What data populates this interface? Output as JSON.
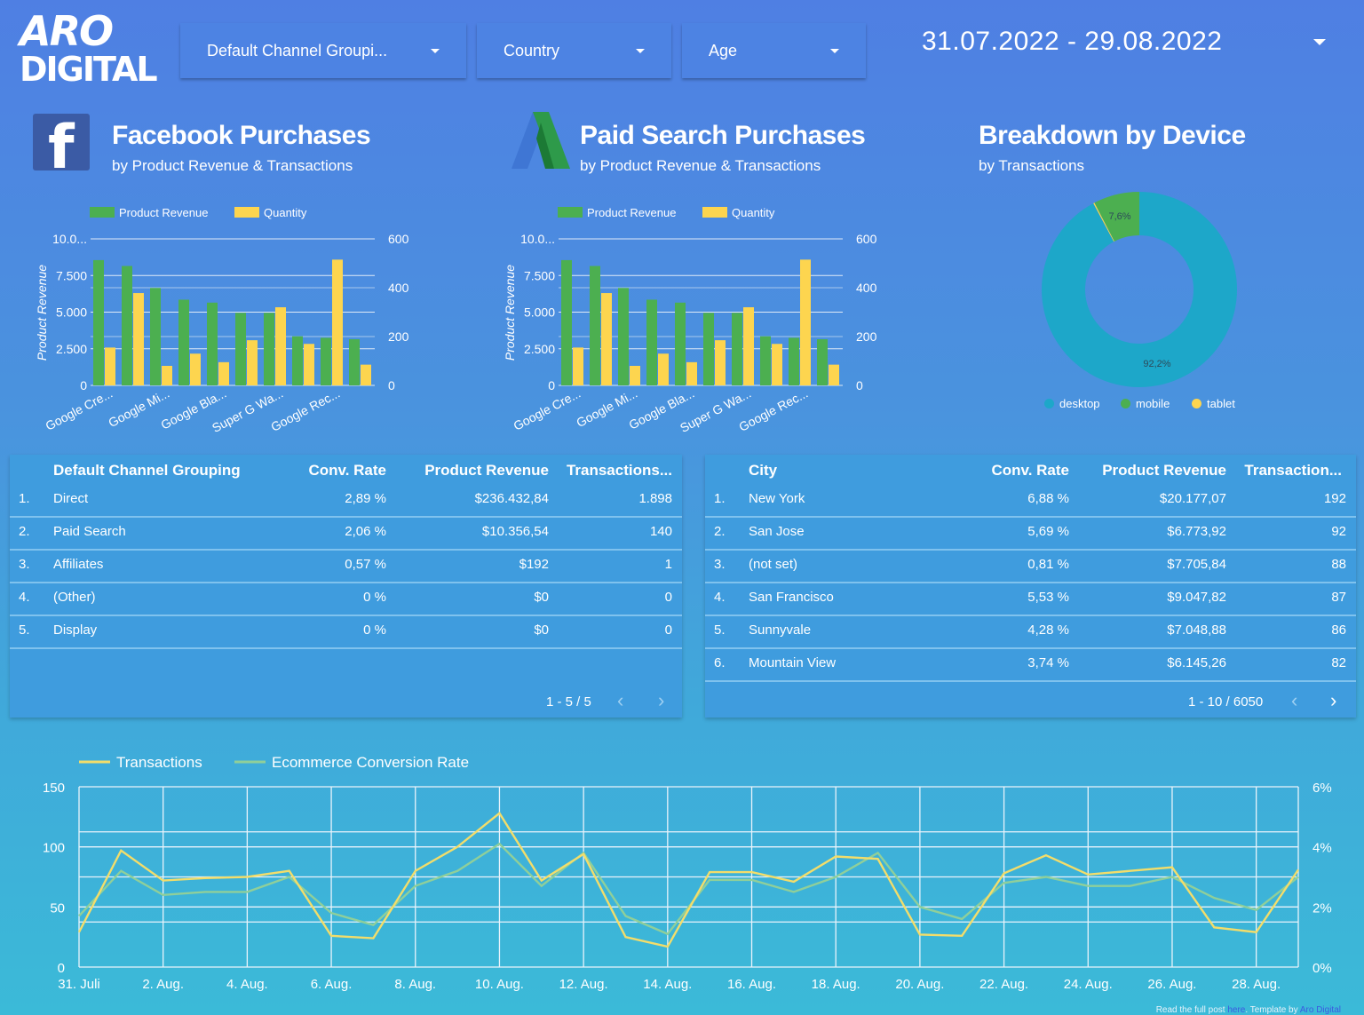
{
  "brand": {
    "line1": "ARO",
    "line2": "DIGITAL"
  },
  "filters": [
    {
      "label": "Default Channel Groupi..."
    },
    {
      "label": "Country"
    },
    {
      "label": "Age"
    }
  ],
  "date_range": "31.07.2022 - 29.08.2022",
  "sections": {
    "facebook": {
      "title": "Facebook Purchases",
      "subtitle": "by Product Revenue & Transactions",
      "icon": "facebook-icon"
    },
    "paid_search": {
      "title": "Paid Search Purchases",
      "subtitle": "by Product Revenue & Transactions",
      "icon": "google-ads-icon"
    },
    "device": {
      "title": "Breakdown by Device",
      "subtitle": "by Transactions"
    }
  },
  "colors": {
    "green": "#4caf50",
    "yellow": "#fdd54f",
    "teal": "#1da7c9",
    "line_yellow": "#f3dd6a",
    "line_green": "#8fcf9a"
  },
  "chart_data": [
    {
      "type": "bar",
      "id": "facebook",
      "legend": [
        "Product Revenue",
        "Quantity"
      ],
      "categories": [
        "Google Cre...",
        "Google Mi...",
        "Google Bla...",
        "Super G Wa...",
        "Google Rec...",
        "",
        "",
        "",
        "",
        ""
      ],
      "tick_labels": [
        "Google Cre...",
        "Google Mi...",
        "Google Bla...",
        "Super G Wa...",
        "Google Rec..."
      ],
      "ylabel": "Product Revenue",
      "y_ticks": [
        "10.0...",
        "7.500",
        "5.000",
        "2.500",
        "0"
      ],
      "y2_ticks": [
        "600",
        "400",
        "200",
        "0"
      ],
      "ylim": [
        0,
        10000
      ],
      "y2lim": [
        0,
        600
      ],
      "series": [
        {
          "name": "Product Revenue",
          "axis": "left",
          "values": [
            8550,
            8150,
            6650,
            5850,
            5650,
            4950,
            4950,
            3350,
            3250,
            3150
          ]
        },
        {
          "name": "Quantity",
          "axis": "right",
          "values": [
            155,
            378,
            80,
            130,
            95,
            185,
            320,
            170,
            515,
            85
          ]
        }
      ]
    },
    {
      "type": "bar",
      "id": "paid_search",
      "legend": [
        "Product Revenue",
        "Quantity"
      ],
      "categories": [
        "Google Cre...",
        "Google Mi...",
        "Google Bla...",
        "Super G Wa...",
        "Google Rec...",
        "",
        "",
        "",
        "",
        ""
      ],
      "tick_labels": [
        "Google Cre...",
        "Google Mi...",
        "Google Bla...",
        "Super G Wa...",
        "Google Rec..."
      ],
      "ylabel": "Product Revenue",
      "y_ticks": [
        "10.0...",
        "7.500",
        "5.000",
        "2.500",
        "0"
      ],
      "y2_ticks": [
        "600",
        "400",
        "200",
        "0"
      ],
      "ylim": [
        0,
        10000
      ],
      "y2lim": [
        0,
        600
      ],
      "series": [
        {
          "name": "Product Revenue",
          "axis": "left",
          "values": [
            8550,
            8150,
            6650,
            5850,
            5650,
            4950,
            4950,
            3350,
            3250,
            3150
          ]
        },
        {
          "name": "Quantity",
          "axis": "right",
          "values": [
            155,
            378,
            80,
            130,
            95,
            185,
            320,
            170,
            515,
            85
          ]
        }
      ]
    },
    {
      "type": "pie",
      "id": "device",
      "labels": [
        "desktop",
        "mobile",
        "tablet"
      ],
      "values": [
        92.2,
        7.6,
        0.2
      ],
      "value_labels": [
        "92,2%",
        "7,6%",
        ""
      ],
      "colors": [
        "#1da7c9",
        "#4caf50",
        "#fdd54f"
      ],
      "donut": true
    },
    {
      "type": "line",
      "id": "trend",
      "legend": [
        "Transactions",
        "Ecommerce Conversion Rate"
      ],
      "x_labels": [
        "31. Juli",
        "2. Aug.",
        "4. Aug.",
        "6. Aug.",
        "8. Aug.",
        "10. Aug.",
        "12. Aug.",
        "14. Aug.",
        "16. Aug.",
        "18. Aug.",
        "20. Aug.",
        "22. Aug.",
        "24. Aug.",
        "26. Aug.",
        "28. Aug."
      ],
      "y_ticks": [
        "150",
        "100",
        "50",
        "0"
      ],
      "y2_ticks": [
        "6%",
        "4%",
        "2%",
        "0%"
      ],
      "ylim": [
        0,
        150
      ],
      "y2lim": [
        0,
        6
      ],
      "series": [
        {
          "name": "Transactions",
          "axis": "left",
          "values": [
            29,
            97,
            72,
            74,
            75,
            80,
            26,
            24,
            80,
            100,
            128,
            72,
            94,
            25,
            17,
            79,
            79,
            71,
            92,
            90,
            27,
            26,
            78,
            93,
            77,
            80,
            83,
            33,
            29,
            81
          ]
        },
        {
          "name": "Ecommerce Conversion Rate",
          "axis": "right",
          "values": [
            1.7,
            3.2,
            2.4,
            2.5,
            2.5,
            3.0,
            1.8,
            1.4,
            2.7,
            3.2,
            4.1,
            2.7,
            3.8,
            1.7,
            1.1,
            2.9,
            2.9,
            2.5,
            3.0,
            3.8,
            2.0,
            1.6,
            2.8,
            3.0,
            2.7,
            2.7,
            3.0,
            2.3,
            1.9,
            3.0
          ]
        }
      ]
    }
  ],
  "channel_table": {
    "headers": [
      "Default Channel Grouping",
      "Conv. Rate",
      "Product Revenue",
      "Transactions..."
    ],
    "rows": [
      {
        "idx": "1.",
        "name": "Direct",
        "conv": "2,89 %",
        "rev": "$236.432,84",
        "tx": "1.898"
      },
      {
        "idx": "2.",
        "name": "Paid Search",
        "conv": "2,06 %",
        "rev": "$10.356,54",
        "tx": "140"
      },
      {
        "idx": "3.",
        "name": "Affiliates",
        "conv": "0,57 %",
        "rev": "$192",
        "tx": "1"
      },
      {
        "idx": "4.",
        "name": "(Other)",
        "conv": "0 %",
        "rev": "$0",
        "tx": "0"
      },
      {
        "idx": "5.",
        "name": "Display",
        "conv": "0 %",
        "rev": "$0",
        "tx": "0"
      }
    ],
    "pager": "1 - 5 / 5"
  },
  "city_table": {
    "headers": [
      "City",
      "Conv. Rate",
      "Product Revenue",
      "Transaction..."
    ],
    "rows": [
      {
        "idx": "1.",
        "name": "New York",
        "conv": "6,88 %",
        "rev": "$20.177,07",
        "tx": "192"
      },
      {
        "idx": "2.",
        "name": "San Jose",
        "conv": "5,69 %",
        "rev": "$6.773,92",
        "tx": "92"
      },
      {
        "idx": "3.",
        "name": "(not set)",
        "conv": "0,81 %",
        "rev": "$7.705,84",
        "tx": "88"
      },
      {
        "idx": "4.",
        "name": "San Francisco",
        "conv": "5,53 %",
        "rev": "$9.047,82",
        "tx": "87"
      },
      {
        "idx": "5.",
        "name": "Sunnyvale",
        "conv": "4,28 %",
        "rev": "$7.048,88",
        "tx": "86"
      },
      {
        "idx": "6.",
        "name": "Mountain View",
        "conv": "3,74 %",
        "rev": "$6.145,26",
        "tx": "82"
      }
    ],
    "pager": "1 - 10 / 6050"
  },
  "footer": {
    "text1": "Read the full post ",
    "link1": "here",
    "text2": ". Template by ",
    "link2": "Aro Digital"
  }
}
